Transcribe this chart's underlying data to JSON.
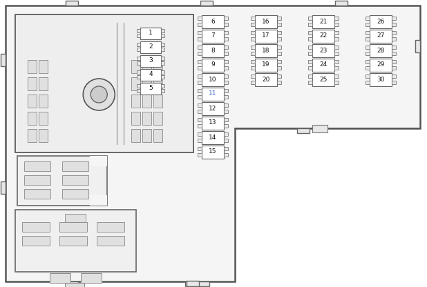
{
  "bg_color": "#ffffff",
  "board_fill": "#f5f5f5",
  "board_edge": "#555555",
  "fuse_fill": "#ffffff",
  "fuse_edge": "#666666",
  "bump_fill": "#e8e8e8",
  "bump_edge": "#777777",
  "relay_fill": "#eeeeee",
  "relay_edge": "#666666",
  "slot_fill": "#e0e0e0",
  "slot_edge": "#888888",
  "text_color": "#111111",
  "highlight_color": "#3366cc",
  "tab_fill": "#e8e8e8",
  "tab_edge": "#666666",
  "figsize": [
    6.18,
    4.16
  ],
  "dpi": 100,
  "col1_fuses": [
    6,
    7,
    8,
    9,
    10,
    11,
    12,
    13,
    14,
    15
  ],
  "col2_fuses": [
    16,
    17,
    18,
    19,
    20
  ],
  "col3_fuses": [
    21,
    22,
    23,
    24,
    25
  ],
  "col4_fuses": [
    26,
    27,
    28,
    29,
    30
  ],
  "small_fuses": [
    1,
    2,
    3,
    4,
    5
  ],
  "highlight_fuse": 11
}
